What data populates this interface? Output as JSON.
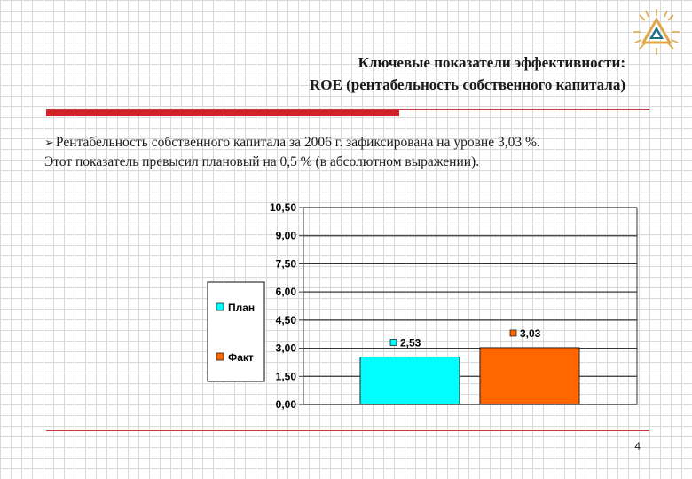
{
  "slide": {
    "title_line1": "Ключевые показатели эффективности:",
    "title_line2": "ROE (рентабельность собственного капитала)",
    "body_line1": "Рентабельность собственного капитала за 2006 г. зафиксирована на уровне 3,03 %.",
    "body_line2": "Этот показатель превысил плановый на 0,5 % (в абсолютном выражении).",
    "page_number": "4"
  },
  "colors": {
    "accent_red": "#d42027",
    "plan": "#00ffff",
    "fact": "#ff6600"
  },
  "icons": {
    "logo": "triangle-emblem-icon",
    "bullet": "arrow-bullet-icon"
  },
  "chart_data": {
    "type": "bar",
    "categories": [
      "План",
      "Факт"
    ],
    "values": [
      2.53,
      3.03
    ],
    "data_labels": [
      "2,53",
      "3,03"
    ],
    "ylim": [
      0,
      10.5
    ],
    "yticks": [
      "0,00",
      "1,50",
      "3,00",
      "4,50",
      "6,00",
      "7,50",
      "9,00",
      "10,50"
    ],
    "ytick_values": [
      0,
      1.5,
      3,
      4.5,
      6,
      7.5,
      9,
      10.5
    ],
    "legend": [
      "План",
      "Факт"
    ],
    "legend_position": "left",
    "grid": true,
    "title": "",
    "xlabel": "",
    "ylabel": ""
  }
}
